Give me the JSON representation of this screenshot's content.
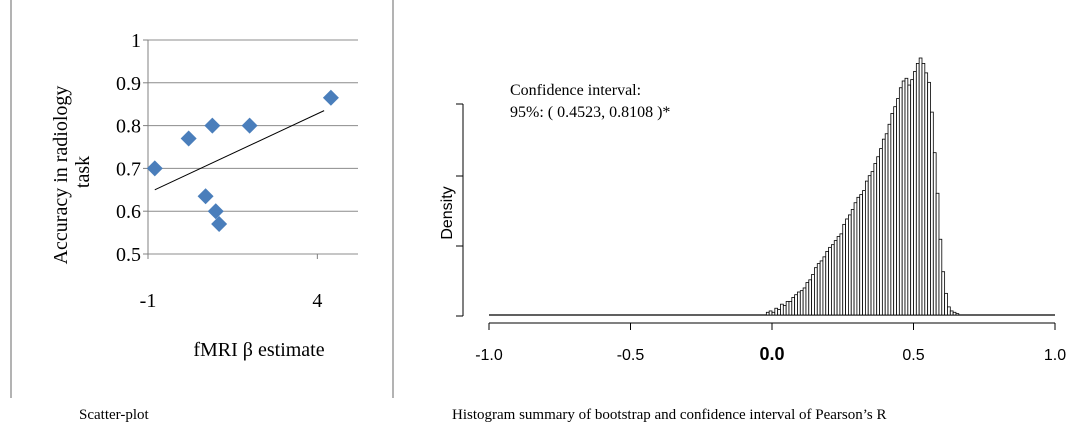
{
  "figure": {
    "left_caption": "Scatter-plot",
    "right_caption": "Histogram summary of bootstrap and confidence interval of Pearson’s R"
  },
  "chart_data": [
    {
      "type": "scatter",
      "title": "",
      "xlabel": "fMRI β estimate",
      "ylabel_line1": "Accuracy in radiology",
      "ylabel_line2": "task",
      "xlim": [
        -1,
        5.2
      ],
      "ylim": [
        0.5,
        1
      ],
      "xticks": [
        -1,
        4
      ],
      "xtick_labels": [
        "-1",
        "4"
      ],
      "yticks": [
        1,
        0.9,
        0.8,
        0.7,
        0.6,
        0.5
      ],
      "ytick_labels": [
        "1",
        "0.9",
        "0.8",
        "0.7",
        "0.6",
        "0.5"
      ],
      "grid": true,
      "marker_color": "#4a7ebb",
      "trendline": {
        "x": [
          -0.8,
          4.2
        ],
        "y": [
          0.65,
          0.835
        ]
      },
      "x": [
        -0.8,
        0.2,
        0.9,
        2.0,
        4.4,
        0.7,
        1.0,
        1.1
      ],
      "y": [
        0.7,
        0.77,
        0.8,
        0.8,
        0.865,
        0.635,
        0.6,
        0.57
      ]
    },
    {
      "type": "bar",
      "subtype": "histogram",
      "xlabel": "",
      "ylabel": "Density",
      "xlim": [
        -1,
        1
      ],
      "xticks": [
        -1,
        -0.5,
        0,
        0.5,
        1
      ],
      "xtick_labels": [
        "-1.0",
        "-0.5",
        "0.0",
        "0.5",
        "1.0"
      ],
      "bold_tick": "0.0",
      "annotation_line1": "Confidence interval:",
      "annotation_line2": "95%: ( 0.4523,  0.8108 )*",
      "bin_start": -0.02,
      "bin_width": 0.01,
      "densities": [
        0.2,
        0.3,
        0.2,
        0.5,
        0.4,
        0.8,
        0.7,
        1.0,
        1.0,
        1.3,
        1.5,
        1.7,
        1.8,
        2.0,
        2.4,
        2.6,
        3.0,
        3.5,
        3.8,
        4.0,
        4.3,
        4.7,
        5.0,
        5.2,
        5.5,
        5.8,
        6.0,
        6.7,
        7.1,
        7.4,
        7.8,
        8.3,
        8.7,
        8.9,
        9.2,
        9.9,
        10.3,
        10.6,
        11.2,
        11.7,
        12.3,
        13.0,
        13.4,
        14.1,
        14.9,
        15.4,
        16.0,
        16.8,
        17.3,
        17.5,
        17.0,
        17.4,
        18.0,
        18.6,
        19.0,
        18.6,
        17.9,
        17.2,
        15.0,
        12.0,
        9.0,
        5.6,
        3.2,
        1.6,
        0.6,
        0.3,
        0.2,
        0.1
      ]
    }
  ]
}
